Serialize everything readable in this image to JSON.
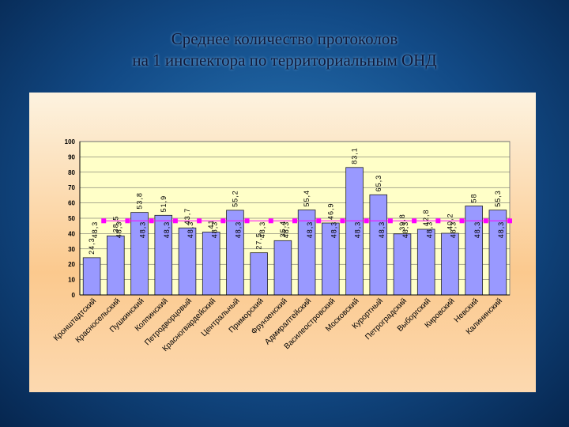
{
  "chart_data": {
    "type": "bar",
    "title_lines": [
      "Среднее количество протоколов",
      "на 1 инспектора по территориальным  ОНД"
    ],
    "categories": [
      "Кронштадтский",
      "Красносельский",
      "Пушкинский",
      "Колпинский",
      "Петродворцовый",
      "Красногвардейский",
      "Центральный",
      "Приморский",
      "Фрунзенский",
      "Адмиралтейский",
      "Василеостровский",
      "Московский",
      "Курортный",
      "Петроградский",
      "Выборгский",
      "Кировский",
      "Невский",
      "Калининский"
    ],
    "series": [
      {
        "color": "#9999ff",
        "values": [
          24.3,
          38.5,
          53.8,
          51.9,
          43.7,
          41,
          55.2,
          27.5,
          35.4,
          55.4,
          46.9,
          83.1,
          65.3,
          39.8,
          42.8,
          40.2,
          58,
          55.3
        ],
        "value_labels": [
          "24,3",
          "38,5",
          "53,8",
          "51,9",
          "43,7",
          "41",
          "55,2",
          "27,5",
          "35,4",
          "55,4",
          "46,9",
          "83,1",
          "65,3",
          "39,8",
          "42,8",
          "40,2",
          "58",
          "55,3"
        ]
      },
      {
        "color": "#ff00ff",
        "values": [
          48.3,
          48.3,
          48.3,
          48.3,
          48.3,
          48.3,
          48.3,
          48.3,
          48.3,
          48.3,
          48.3,
          48.3,
          48.3,
          48.3,
          48.3,
          48.3,
          48.3,
          48.3
        ],
        "value_labels": [
          "48,3",
          "48,3",
          "48,3",
          "48,3",
          "48,3",
          "48,3",
          "48,3",
          "48,3",
          "48,3",
          "48,3",
          "48,3",
          "48,3",
          "48,3",
          "48,3",
          "48,3",
          "48,3",
          "48,3",
          "48,3"
        ]
      }
    ],
    "ylim": [
      0,
      100
    ],
    "yticks": [
      0,
      10,
      20,
      30,
      40,
      50,
      60,
      70,
      80,
      90,
      100
    ],
    "grid": true
  }
}
